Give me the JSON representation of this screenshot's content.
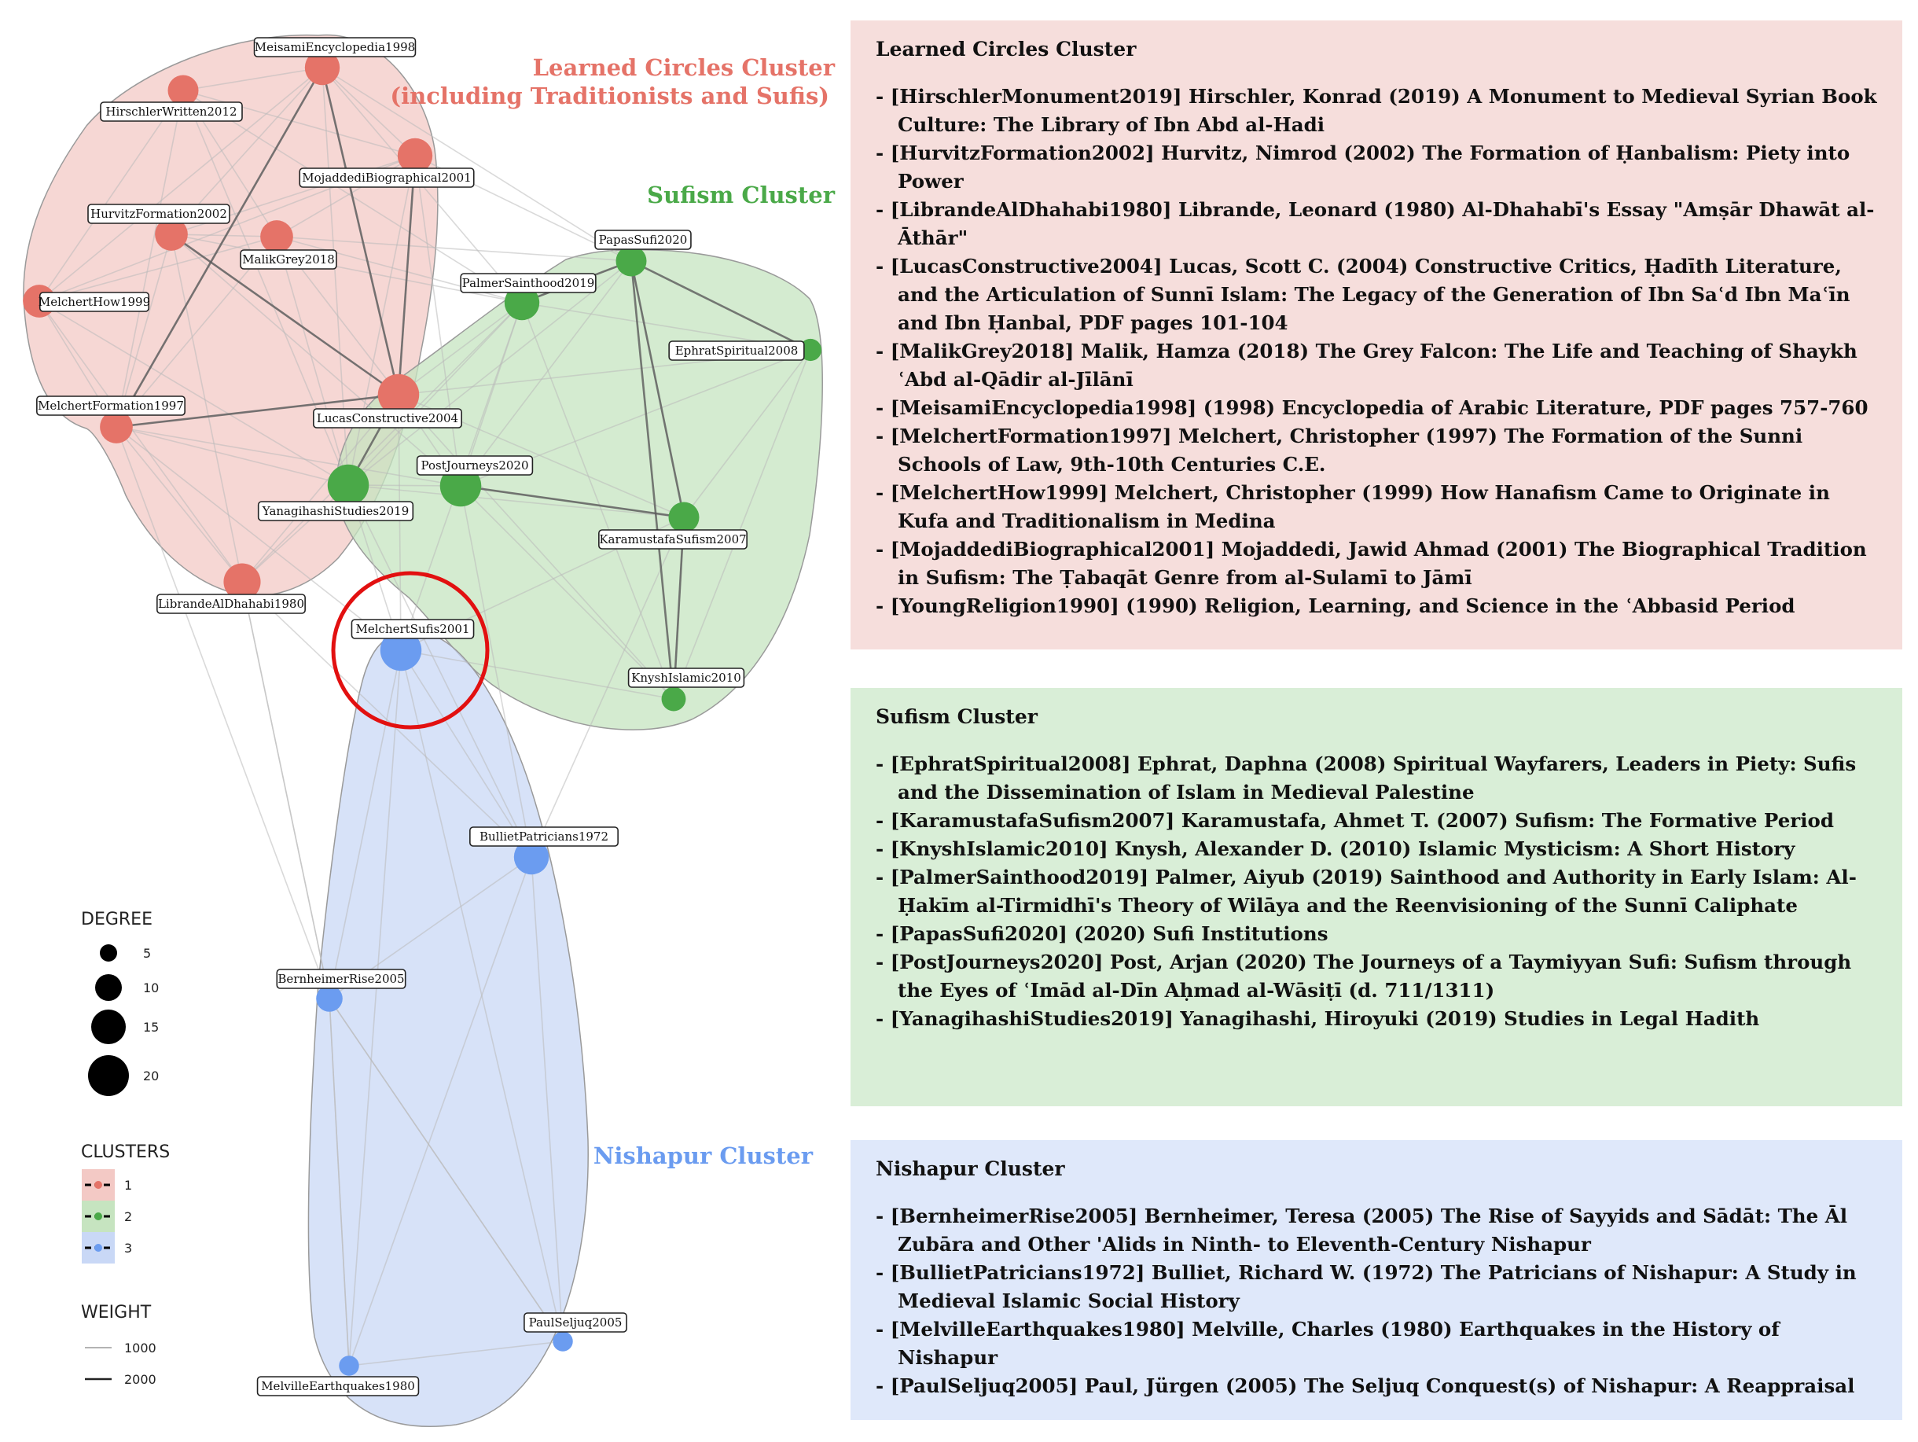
{
  "clusters": {
    "learned": {
      "title_line1": "Learned Circles Cluster",
      "title_line2": "(including Traditionists and Sufis)",
      "color": "#e57368",
      "fill": "#f3c9c5"
    },
    "sufism": {
      "title": "Sufism Cluster",
      "color": "#4aa948",
      "fill": "#c6e4c0"
    },
    "nishapur": {
      "title": "Nishapur Cluster",
      "color": "#6b9cf0",
      "fill": "#c9d8f6"
    }
  },
  "nodes": [
    {
      "id": "MeisamiEncyclopedia1998",
      "cluster": 1,
      "degree": 12
    },
    {
      "id": "HirschlerWritten2012",
      "cluster": 1,
      "degree": 10
    },
    {
      "id": "MojaddediBiographical2001",
      "cluster": 1,
      "degree": 12
    },
    {
      "id": "HurvitzFormation2002",
      "cluster": 1,
      "degree": 11
    },
    {
      "id": "MalikGrey2018",
      "cluster": 1,
      "degree": 11
    },
    {
      "id": "MelchertHow1999",
      "cluster": 1,
      "degree": 11
    },
    {
      "id": "MelchertFormation1997",
      "cluster": 1,
      "degree": 11
    },
    {
      "id": "LucasConstructive2004",
      "cluster": 1,
      "degree": 15
    },
    {
      "id": "LibrandeAlDhahabi1980",
      "cluster": 1,
      "degree": 13
    },
    {
      "id": "PapasSufi2020",
      "cluster": 2,
      "degree": 10
    },
    {
      "id": "PalmerSainthood2019",
      "cluster": 2,
      "degree": 12
    },
    {
      "id": "EphratSpiritual2008",
      "cluster": 2,
      "degree": 6
    },
    {
      "id": "PostJourneys2020",
      "cluster": 2,
      "degree": 15
    },
    {
      "id": "YanagihashiStudies2019",
      "cluster": 2,
      "degree": 15
    },
    {
      "id": "KaramustafaSufism2007",
      "cluster": 2,
      "degree": 10
    },
    {
      "id": "KnyshIslamic2010",
      "cluster": 2,
      "degree": 7
    },
    {
      "id": "MelchertSufis2001",
      "cluster": 3,
      "degree": 15
    },
    {
      "id": "BullietPatricians1972",
      "cluster": 3,
      "degree": 12
    },
    {
      "id": "BernheimerRise2005",
      "cluster": 3,
      "degree": 8
    },
    {
      "id": "PaulSeljuq2005",
      "cluster": 3,
      "degree": 5
    },
    {
      "id": "MelvilleEarthquakes1980",
      "cluster": 3,
      "degree": 5
    }
  ],
  "legend": {
    "degree_title": "DEGREE",
    "degree_values": [
      "5",
      "10",
      "15",
      "20"
    ],
    "clusters_title": "CLUSTERS",
    "cluster_values": [
      "1",
      "2",
      "3"
    ],
    "weight_title": "WEIGHT",
    "weight_values": [
      "1000",
      "2000"
    ]
  },
  "panels": {
    "learned": {
      "title": "Learned Circles Cluster",
      "items": [
        "- [HirschlerMonument2019] Hirschler, Konrad (2019) A Monument to Medieval Syrian Book Culture: The Library of Ibn Abd al-Hadi",
        "- [HurvitzFormation2002] Hurvitz, Nimrod (2002) The Formation of Ḥanbalism: Piety into Power",
        "- [LibrandeAlDhahabi1980] Librande, Leonard (1980) Al-Dhahabī's Essay \"Amṣār Dhawāt al-Āthār\"",
        "- [LucasConstructive2004] Lucas, Scott C. (2004) Constructive Critics, Ḥadīth Literature, and the Articulation of Sunnī Islam: The Legacy of the Generation of Ibn Saʿd Ibn Maʿīn and Ibn Ḥanbal, PDF pages 101-104",
        "- [MalikGrey2018] Malik, Hamza (2018) The Grey Falcon: The Life and Teaching of Shaykh ʿAbd al-Qādir al-Jīlānī",
        "- [MeisamiEncyclopedia1998] (1998) Encyclopedia of Arabic Literature, PDF pages 757-760",
        "- [MelchertFormation1997] Melchert, Christopher (1997) The Formation of the Sunni Schools of Law, 9th-10th Centuries C.E.",
        "- [MelchertHow1999] Melchert, Christopher (1999) How Hanafism Came to Originate in Kufa and Traditionalism in Medina",
        "- [MojaddediBiographical2001] Mojaddedi, Jawid Ahmad (2001) The Biographical Tradition in Sufism: The Ṭabaqāt Genre from al-Sulamī to Jāmī",
        "- [YoungReligion1990] (1990) Religion, Learning, and Science in the ʿAbbasid Period"
      ]
    },
    "sufism": {
      "title": "Sufism Cluster",
      "items": [
        "- [EphratSpiritual2008] Ephrat, Daphna (2008) Spiritual Wayfarers, Leaders in Piety: Sufis and the Dissemination of Islam in Medieval Palestine",
        "- [KaramustafaSufism2007] Karamustafa, Ahmet T. (2007) Sufism: The Formative Period",
        "- [KnyshIslamic2010] Knysh, Alexander D. (2010) Islamic Mysticism: A Short History",
        "- [PalmerSainthood2019] Palmer, Aiyub (2019) Sainthood and Authority in Early Islam: Al-Ḥakīm al-Tirmidhī's Theory of Wilāya and the Reenvisioning of the Sunnī Caliphate",
        "- [PapasSufi2020] (2020) Sufi Institutions",
        "- [PostJourneys2020] Post, Arjan (2020) The Journeys of a Taymiyyan Sufi: Sufism through the Eyes of ʿImād al-Dīn Aḥmad al-Wāsiṭī (d. 711/1311)",
        "- [YanagihashiStudies2019] Yanagihashi, Hiroyuki (2019) Studies in Legal Hadith"
      ]
    },
    "nishapur": {
      "title": "Nishapur Cluster",
      "items": [
        "- [BernheimerRise2005] Bernheimer, Teresa (2005) The Rise of Sayyids and Sādāt: The Āl Zubāra and Other 'Alids in Ninth- to Eleventh-Century Nishapur",
        "- [BullietPatricians1972] Bulliet, Richard W. (1972) The Patricians of Nishapur: A Study in Medieval Islamic Social History",
        "- [MelvilleEarthquakes1980] Melville, Charles (1980) Earthquakes in the History of Nishapur",
        "- [PaulSeljuq2005] Paul, Jürgen (2005) The Seljuq Conquest(s) of Nishapur: A Reappraisal"
      ]
    }
  }
}
